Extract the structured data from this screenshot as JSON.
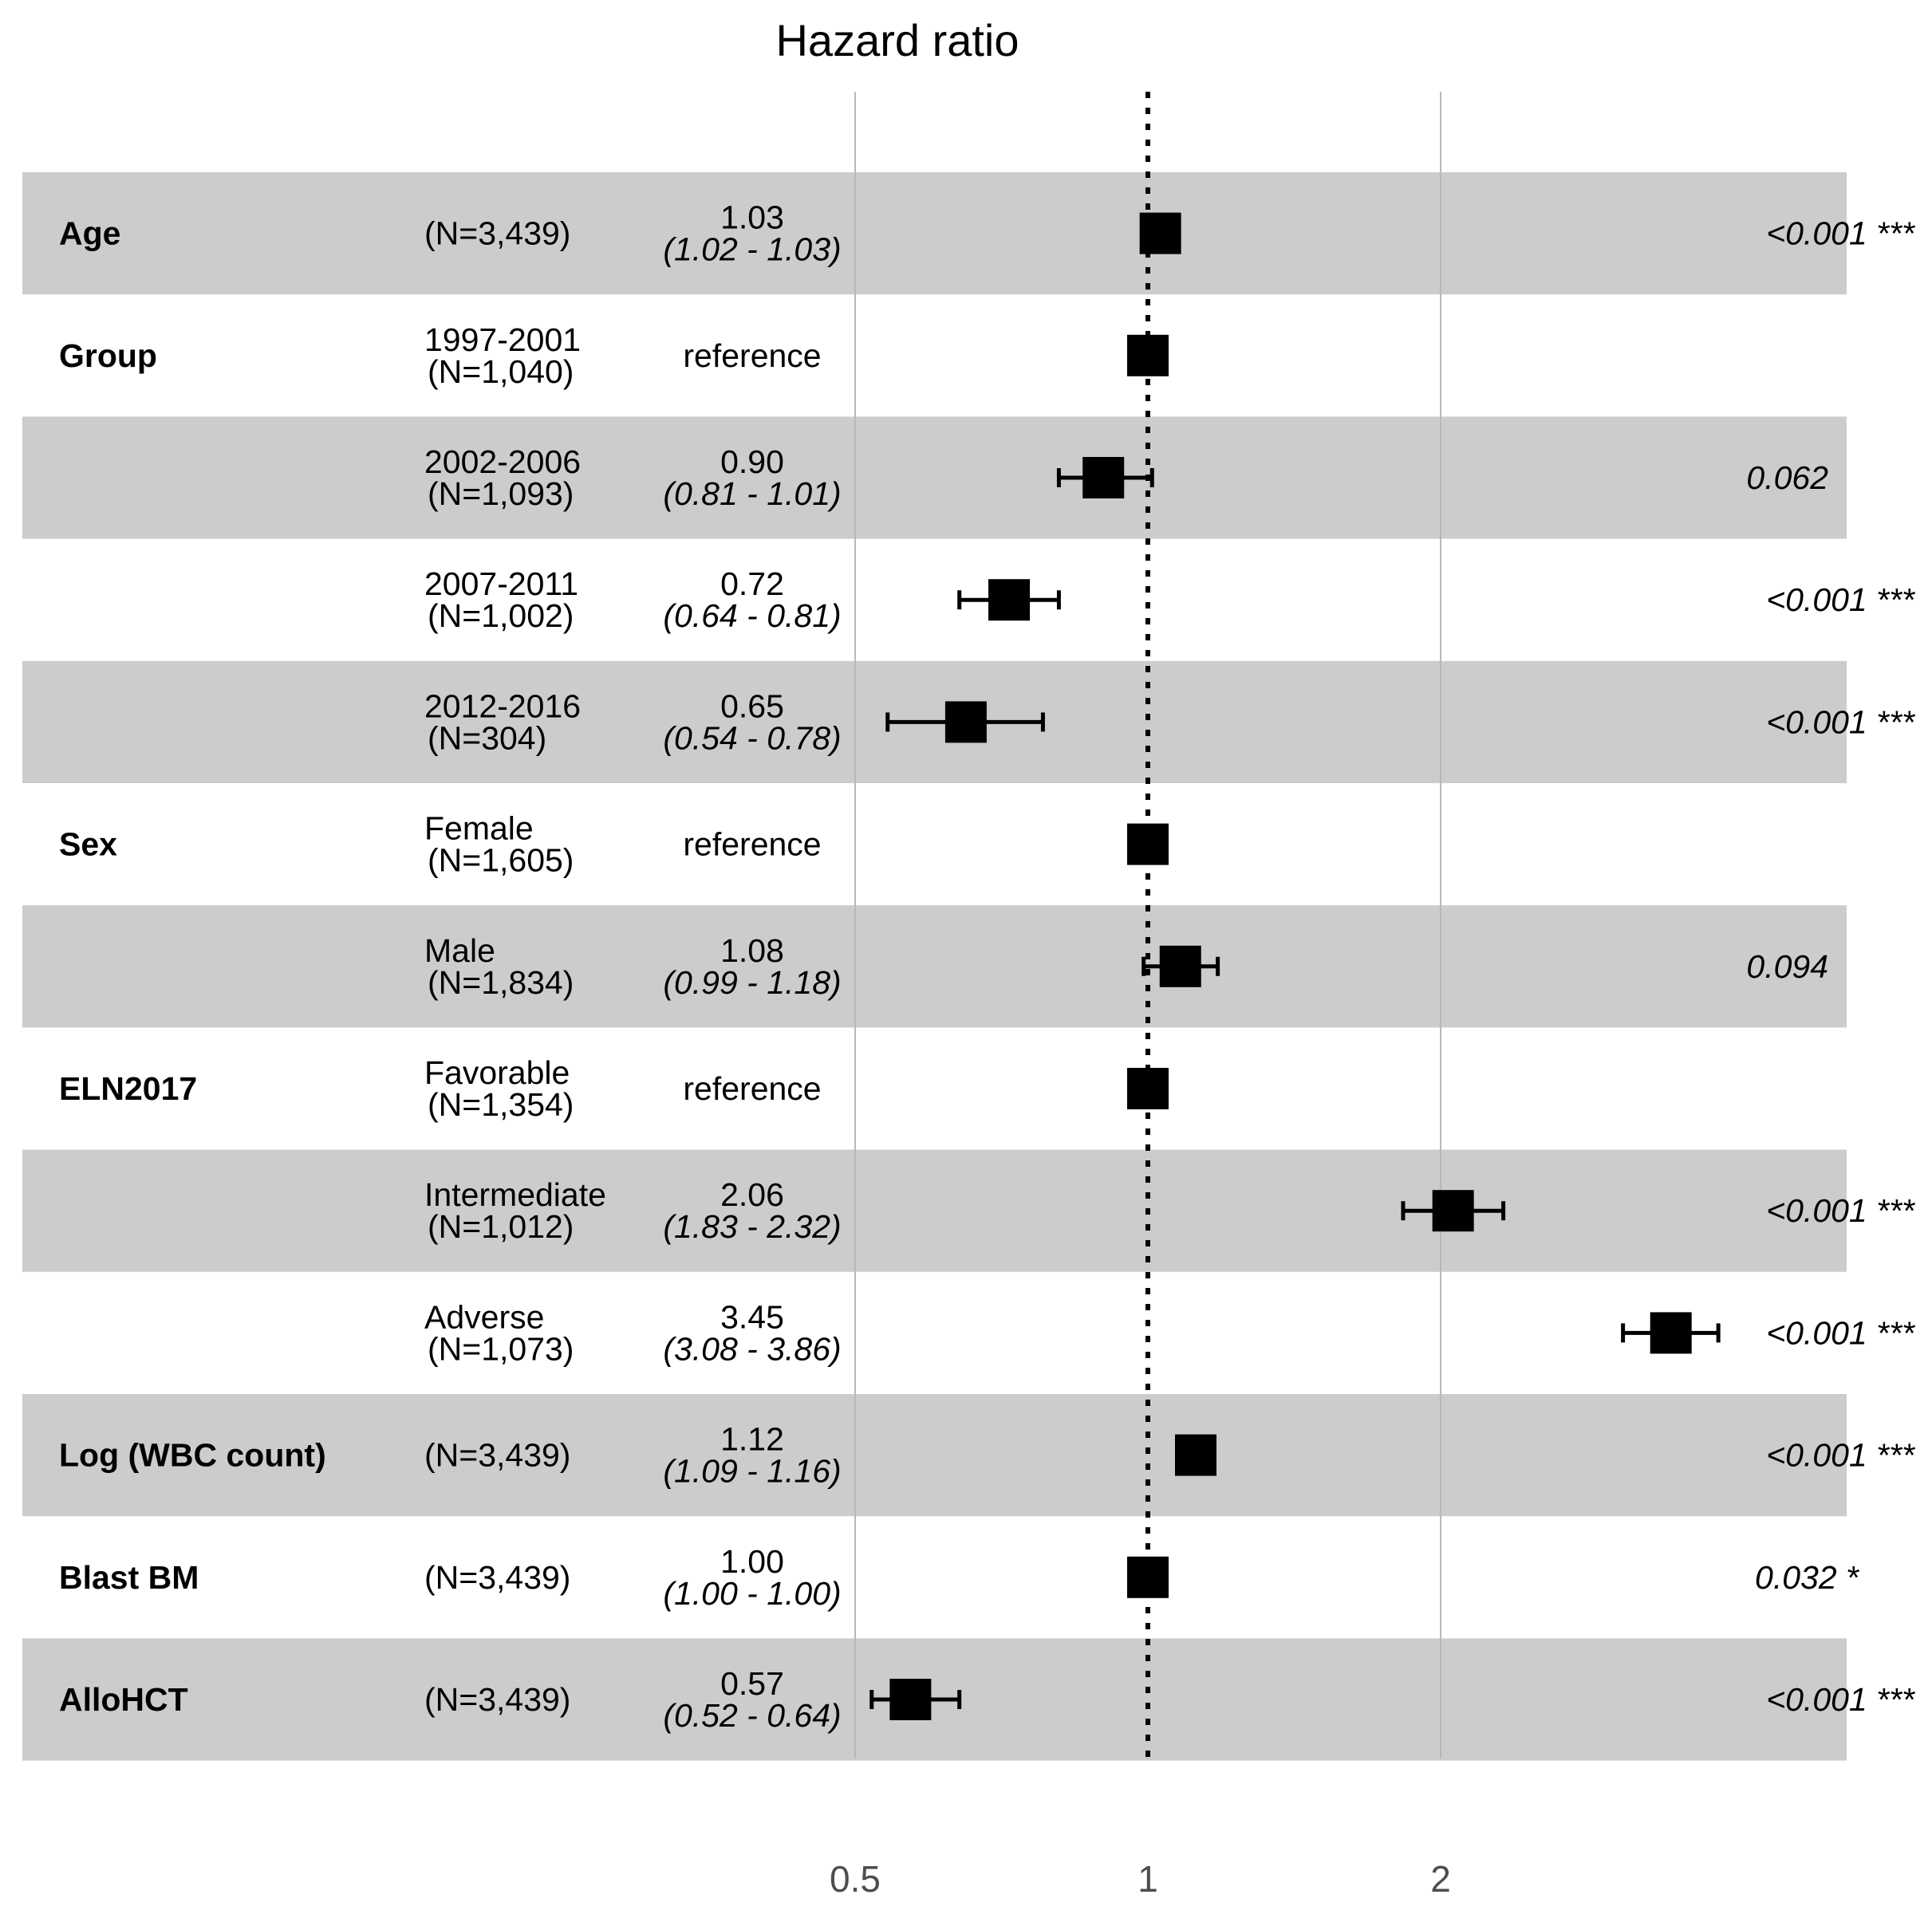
{
  "chart_data": {
    "type": "forest",
    "title": "Hazard ratio",
    "x_scale": "log",
    "xlim": [
      0.39,
      5.3
    ],
    "reference_line": 1,
    "x_ticks": [
      {
        "value": 0.5,
        "label": "0.5"
      },
      {
        "value": 1,
        "label": "1"
      },
      {
        "value": 2,
        "label": "2"
      }
    ],
    "rows": [
      {
        "variable": "Age",
        "level": "",
        "n": "(N=3,439)",
        "hr_label": "1.03",
        "ci_label": "(1.02 - 1.03)",
        "hr": 1.03,
        "lower": 1.02,
        "upper": 1.03,
        "p": "<0.001 ***",
        "shaded": true
      },
      {
        "variable": "Group",
        "level": "1997-2001",
        "n": "(N=1,040)",
        "hr_label": "reference",
        "ci_label": "",
        "hr": 1.0,
        "lower": null,
        "upper": null,
        "p": "",
        "shaded": false
      },
      {
        "variable": "",
        "level": "2002-2006",
        "n": "(N=1,093)",
        "hr_label": "0.90",
        "ci_label": "(0.81 - 1.01)",
        "hr": 0.9,
        "lower": 0.81,
        "upper": 1.01,
        "p": "0.062",
        "shaded": true
      },
      {
        "variable": "",
        "level": "2007-2011",
        "n": "(N=1,002)",
        "hr_label": "0.72",
        "ci_label": "(0.64 - 0.81)",
        "hr": 0.72,
        "lower": 0.64,
        "upper": 0.81,
        "p": "<0.001 ***",
        "shaded": false
      },
      {
        "variable": "",
        "level": "2012-2016",
        "n": "(N=304)",
        "hr_label": "0.65",
        "ci_label": "(0.54 - 0.78)",
        "hr": 0.65,
        "lower": 0.54,
        "upper": 0.78,
        "p": "<0.001 ***",
        "shaded": true
      },
      {
        "variable": "Sex",
        "level": "Female",
        "n": "(N=1,605)",
        "hr_label": "reference",
        "ci_label": "",
        "hr": 1.0,
        "lower": null,
        "upper": null,
        "p": "",
        "shaded": false
      },
      {
        "variable": "",
        "level": "Male",
        "n": "(N=1,834)",
        "hr_label": "1.08",
        "ci_label": "(0.99 - 1.18)",
        "hr": 1.08,
        "lower": 0.99,
        "upper": 1.18,
        "p": "0.094",
        "shaded": true
      },
      {
        "variable": "ELN2017",
        "level": "Favorable",
        "n": "(N=1,354)",
        "hr_label": "reference",
        "ci_label": "",
        "hr": 1.0,
        "lower": null,
        "upper": null,
        "p": "",
        "shaded": false
      },
      {
        "variable": "",
        "level": "Intermediate",
        "n": "(N=1,012)",
        "hr_label": "2.06",
        "ci_label": "(1.83 - 2.32)",
        "hr": 2.06,
        "lower": 1.83,
        "upper": 2.32,
        "p": "<0.001 ***",
        "shaded": true
      },
      {
        "variable": "",
        "level": "Adverse",
        "n": "(N=1,073)",
        "hr_label": "3.45",
        "ci_label": "(3.08 - 3.86)",
        "hr": 3.45,
        "lower": 3.08,
        "upper": 3.86,
        "p": "<0.001 ***",
        "shaded": false
      },
      {
        "variable": "Log (WBC count)",
        "level": "",
        "n": "(N=3,439)",
        "hr_label": "1.12",
        "ci_label": "(1.09 - 1.16)",
        "hr": 1.12,
        "lower": 1.09,
        "upper": 1.16,
        "p": "<0.001 ***",
        "shaded": true
      },
      {
        "variable": "Blast BM",
        "level": "",
        "n": "(N=3,439)",
        "hr_label": "1.00",
        "ci_label": "(1.00 - 1.00)",
        "hr": 1.0,
        "lower": 1.0,
        "upper": 1.0,
        "p": "0.032 *",
        "shaded": false
      },
      {
        "variable": "AlloHCT",
        "level": "",
        "n": "(N=3,439)",
        "hr_label": "0.57",
        "ci_label": "(0.52 - 0.64)",
        "hr": 0.57,
        "lower": 0.52,
        "upper": 0.64,
        "p": "<0.001 ***",
        "shaded": true
      }
    ]
  }
}
